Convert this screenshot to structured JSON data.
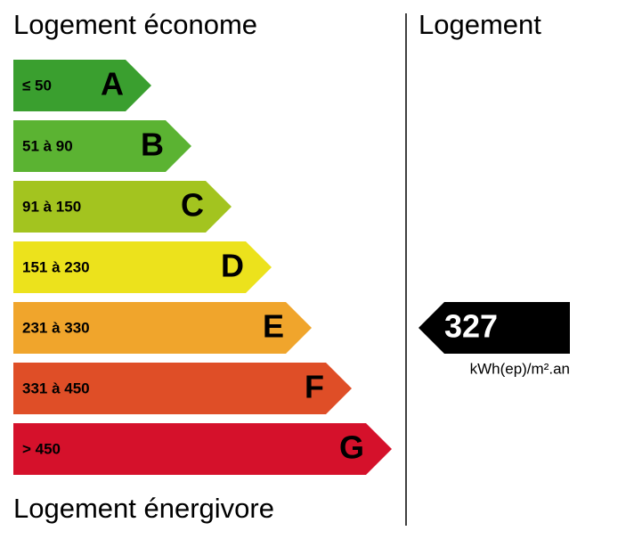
{
  "header": {
    "left": "Logement économe",
    "right": "Logement"
  },
  "bands": [
    {
      "range": "≤ 50",
      "letter": "A",
      "color": "#3a9f2f"
    },
    {
      "range": "51 à 90",
      "letter": "B",
      "color": "#5bb332"
    },
    {
      "range": "91 à 150",
      "letter": "C",
      "color": "#a3c41f"
    },
    {
      "range": "151 à 230",
      "letter": "D",
      "color": "#ece21c"
    },
    {
      "range": "231 à 330",
      "letter": "E",
      "color": "#f0a52c"
    },
    {
      "range": "331 à 450",
      "letter": "F",
      "color": "#df4e27"
    },
    {
      "range": "> 450",
      "letter": "G",
      "color": "#d5112b"
    }
  ],
  "indicator": {
    "value": 327,
    "unit": "kWh(ep)/m².an"
  },
  "footer": {
    "left": "Logement énergivore"
  }
}
